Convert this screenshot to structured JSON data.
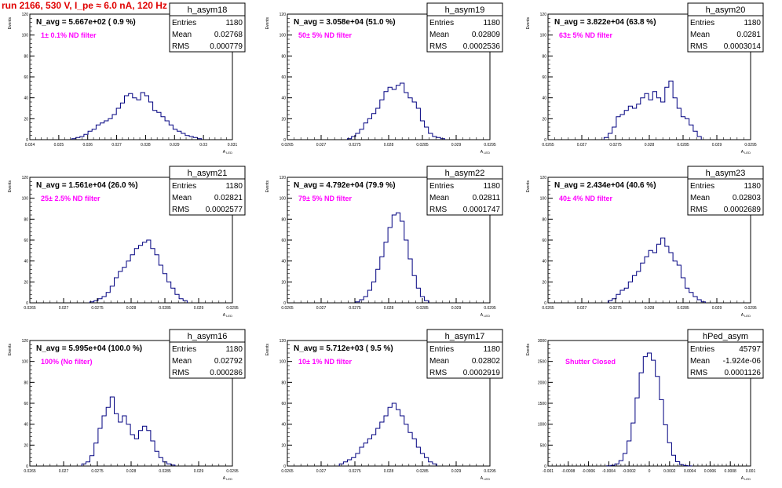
{
  "page_title": "run 2166,   530 V, I_pe ≈ 6.0 nA, 120 Hz",
  "colors": {
    "title": "#e00000",
    "filter_note": "#ff00ff",
    "histogram": "#000080",
    "frame": "#000000"
  },
  "common": {
    "ylabel": "Events",
    "xlabel": "A",
    "xlabel_sub": "LED",
    "stats_labels": {
      "entries": "Entries",
      "mean": "Mean",
      "rms": "RMS"
    }
  },
  "chart_data": [
    {
      "type": "bar",
      "name": "h_asym18",
      "navg": "N_avg = 5.667e+02 ( 0.9 %)",
      "note": "1± 0.1% ND filter",
      "stats": {
        "entries": "1180",
        "mean": "0.02768",
        "rms": "0.000779"
      },
      "xlim": [
        0.024,
        0.031
      ],
      "ylim": [
        0,
        120
      ],
      "xticks": [
        "0.024",
        "0.025",
        "0.026",
        "0.027",
        "0.028",
        "0.029",
        "0.03",
        "0.031"
      ],
      "yticks": [
        "0",
        "20",
        "40",
        "60",
        "80",
        "100",
        "120"
      ],
      "x": [
        0.02552,
        0.02566,
        0.0258,
        0.02594,
        0.02608,
        0.02622,
        0.02636,
        0.0265,
        0.02664,
        0.02678,
        0.02692,
        0.02706,
        0.0272,
        0.02734,
        0.02748,
        0.02762,
        0.02776,
        0.0279,
        0.02804,
        0.02818,
        0.02832,
        0.02846,
        0.0286,
        0.02874,
        0.02888,
        0.02902,
        0.02916,
        0.0293,
        0.02944,
        0.02958,
        0.02972,
        0.02986
      ],
      "values": [
        1,
        2,
        3,
        5,
        8,
        10,
        14,
        16,
        18,
        20,
        24,
        30,
        35,
        42,
        44,
        40,
        38,
        45,
        42,
        36,
        28,
        26,
        22,
        18,
        14,
        10,
        8,
        6,
        4,
        3,
        2,
        1
      ]
    },
    {
      "type": "bar",
      "name": "h_asym19",
      "navg": "N_avg = 3.058e+04 (51.0 %)",
      "note": "50± 5% ND filter",
      "stats": {
        "entries": "1180",
        "mean": "0.02809",
        "rms": "0.0002536"
      },
      "xlim": [
        0.0265,
        0.0295
      ],
      "ylim": [
        0,
        120
      ],
      "xticks": [
        "0.0265",
        "0.027",
        "0.0275",
        "0.028",
        "0.0285",
        "0.029",
        "0.0295"
      ],
      "yticks": [
        "0",
        "20",
        "40",
        "60",
        "80",
        "100",
        "120"
      ],
      "x": [
        0.02742,
        0.02748,
        0.02754,
        0.0276,
        0.02766,
        0.02772,
        0.02778,
        0.02784,
        0.0279,
        0.02796,
        0.02802,
        0.02808,
        0.02814,
        0.0282,
        0.02826,
        0.02832,
        0.02838,
        0.02844,
        0.0285,
        0.02856,
        0.02862,
        0.02868,
        0.02874,
        0.0288
      ],
      "values": [
        1,
        3,
        6,
        10,
        16,
        20,
        25,
        30,
        38,
        46,
        50,
        48,
        52,
        54,
        45,
        40,
        36,
        30,
        18,
        12,
        6,
        3,
        2,
        1
      ]
    },
    {
      "type": "bar",
      "name": "h_asym20",
      "navg": "N_avg = 3.822e+04 (63.8 %)",
      "note": "63± 5% ND filter",
      "stats": {
        "entries": "1180",
        "mean": "0.0281",
        "rms": "0.0003014"
      },
      "xlim": [
        0.0265,
        0.0295
      ],
      "ylim": [
        0,
        120
      ],
      "xticks": [
        "0.0265",
        "0.027",
        "0.0275",
        "0.028",
        "0.0285",
        "0.029",
        "0.0295"
      ],
      "yticks": [
        "0",
        "20",
        "40",
        "60",
        "80",
        "100",
        "120"
      ],
      "x": [
        0.02736,
        0.02742,
        0.02748,
        0.02754,
        0.0276,
        0.02766,
        0.02772,
        0.02778,
        0.02784,
        0.0279,
        0.02796,
        0.02802,
        0.02808,
        0.02814,
        0.0282,
        0.02826,
        0.02832,
        0.02838,
        0.02844,
        0.0285,
        0.02856,
        0.02862,
        0.02868,
        0.02874
      ],
      "values": [
        2,
        6,
        12,
        22,
        24,
        28,
        32,
        30,
        34,
        40,
        44,
        38,
        46,
        40,
        36,
        50,
        56,
        40,
        30,
        22,
        20,
        14,
        8,
        3
      ]
    },
    {
      "type": "bar",
      "name": "h_asym21",
      "navg": "N_avg = 1.561e+04 (26.0 %)",
      "note": "25± 2.5% ND filter",
      "stats": {
        "entries": "1180",
        "mean": "0.02821",
        "rms": "0.0002577"
      },
      "xlim": [
        0.0265,
        0.0295
      ],
      "ylim": [
        0,
        120
      ],
      "xticks": [
        "0.0265",
        "0.027",
        "0.0275",
        "0.028",
        "0.0285",
        "0.029",
        "0.0295"
      ],
      "yticks": [
        "0",
        "20",
        "40",
        "60",
        "80",
        "100",
        "120"
      ],
      "x": [
        0.02742,
        0.02748,
        0.02754,
        0.0276,
        0.02766,
        0.02772,
        0.02778,
        0.02784,
        0.0279,
        0.02796,
        0.02802,
        0.02808,
        0.02814,
        0.0282,
        0.02826,
        0.02832,
        0.02838,
        0.02844,
        0.0285,
        0.02856,
        0.02862,
        0.02868,
        0.02874,
        0.0288
      ],
      "values": [
        1,
        2,
        4,
        6,
        10,
        16,
        24,
        30,
        34,
        40,
        46,
        52,
        55,
        58,
        60,
        52,
        46,
        36,
        28,
        20,
        14,
        8,
        4,
        2
      ]
    },
    {
      "type": "bar",
      "name": "h_asym22",
      "navg": "N_avg = 4.792e+04 (79.9 %)",
      "note": "79± 5% ND filter",
      "stats": {
        "entries": "1180",
        "mean": "0.02811",
        "rms": "0.0001747"
      },
      "xlim": [
        0.0265,
        0.0295
      ],
      "ylim": [
        0,
        120
      ],
      "xticks": [
        "0.0265",
        "0.027",
        "0.0275",
        "0.028",
        "0.0285",
        "0.029",
        "0.0295"
      ],
      "yticks": [
        "0",
        "20",
        "40",
        "60",
        "80",
        "100",
        "120"
      ],
      "x": [
        0.02754,
        0.0276,
        0.02766,
        0.02772,
        0.02778,
        0.02784,
        0.0279,
        0.02796,
        0.02802,
        0.02808,
        0.02814,
        0.0282,
        0.02826,
        0.02832,
        0.02838,
        0.02844,
        0.0285,
        0.02856
      ],
      "values": [
        1,
        3,
        6,
        12,
        20,
        32,
        44,
        58,
        72,
        84,
        86,
        78,
        60,
        42,
        26,
        14,
        6,
        2
      ]
    },
    {
      "type": "bar",
      "name": "h_asym23",
      "navg": "N_avg = 2.434e+04 (40.6 %)",
      "note": "40± 4% ND filter",
      "stats": {
        "entries": "1180",
        "mean": "0.02803",
        "rms": "0.0002689"
      },
      "xlim": [
        0.0265,
        0.0295
      ],
      "ylim": [
        0,
        120
      ],
      "xticks": [
        "0.0265",
        "0.027",
        "0.0275",
        "0.028",
        "0.0285",
        "0.029",
        "0.0295"
      ],
      "yticks": [
        "0",
        "20",
        "40",
        "60",
        "80",
        "100",
        "120"
      ],
      "x": [
        0.02742,
        0.02748,
        0.02754,
        0.0276,
        0.02766,
        0.02772,
        0.02778,
        0.02784,
        0.0279,
        0.02796,
        0.02802,
        0.02808,
        0.02814,
        0.0282,
        0.02826,
        0.02832,
        0.02838,
        0.02844,
        0.0285,
        0.02856,
        0.02862,
        0.02868,
        0.02874,
        0.0288
      ],
      "values": [
        2,
        4,
        8,
        12,
        14,
        20,
        26,
        30,
        38,
        44,
        50,
        48,
        56,
        62,
        54,
        48,
        40,
        36,
        24,
        14,
        10,
        6,
        3,
        1
      ]
    },
    {
      "type": "bar",
      "name": "h_asym16",
      "navg": "N_avg = 5.995e+04 (100.0 %)",
      "note": "100% (No filter)",
      "stats": {
        "entries": "1180",
        "mean": "0.02792",
        "rms": "0.000286"
      },
      "xlim": [
        0.0265,
        0.0295
      ],
      "ylim": [
        0,
        120
      ],
      "xticks": [
        "0.0265",
        "0.027",
        "0.0275",
        "0.028",
        "0.0285",
        "0.029",
        "0.0295"
      ],
      "yticks": [
        "0",
        "20",
        "40",
        "60",
        "80",
        "100",
        "120"
      ],
      "x": [
        0.0273,
        0.02736,
        0.02742,
        0.02748,
        0.02754,
        0.0276,
        0.02766,
        0.02772,
        0.02778,
        0.02784,
        0.0279,
        0.02796,
        0.02802,
        0.02808,
        0.02814,
        0.0282,
        0.02826,
        0.02832,
        0.02838,
        0.02844,
        0.0285,
        0.02856,
        0.02862
      ],
      "values": [
        2,
        4,
        10,
        22,
        36,
        48,
        56,
        66,
        50,
        42,
        48,
        40,
        30,
        26,
        34,
        38,
        34,
        24,
        14,
        8,
        4,
        2,
        1
      ]
    },
    {
      "type": "bar",
      "name": "h_asym17",
      "navg": "N_avg = 5.712e+03 ( 9.5 %)",
      "note": "10± 1% ND filter",
      "stats": {
        "entries": "1180",
        "mean": "0.02802",
        "rms": "0.0002919"
      },
      "xlim": [
        0.0265,
        0.0295
      ],
      "ylim": [
        0,
        120
      ],
      "xticks": [
        "0.0265",
        "0.027",
        "0.0275",
        "0.028",
        "0.0285",
        "0.029",
        "0.0295"
      ],
      "yticks": [
        "0",
        "20",
        "40",
        "60",
        "80",
        "100",
        "120"
      ],
      "x": [
        0.0273,
        0.02736,
        0.02742,
        0.02748,
        0.02754,
        0.0276,
        0.02766,
        0.02772,
        0.02778,
        0.02784,
        0.0279,
        0.02796,
        0.02802,
        0.02808,
        0.02814,
        0.0282,
        0.02826,
        0.02832,
        0.02838,
        0.02844,
        0.0285,
        0.02856,
        0.02862,
        0.02868
      ],
      "values": [
        2,
        4,
        6,
        8,
        12,
        18,
        22,
        26,
        30,
        36,
        42,
        48,
        56,
        60,
        54,
        48,
        40,
        32,
        26,
        18,
        12,
        8,
        4,
        2
      ]
    },
    {
      "type": "bar",
      "name": "hPed_asym",
      "navg": "",
      "note": "Shutter Closed",
      "stats": {
        "entries": "45797",
        "mean": "-1.924e-06",
        "rms": "0.0001126"
      },
      "xlim": [
        -0.001,
        0.001
      ],
      "ylim": [
        0,
        3500
      ],
      "xticks": [
        "-0.001",
        "-0.0008",
        "-0.0006",
        "-0.0004",
        "-0.0002",
        "0",
        "0.0002",
        "0.0004",
        "0.0006",
        "0.0008",
        "0.001"
      ],
      "yticks": [
        "0",
        "500",
        "1000",
        "1500",
        "2000",
        "2500",
        "3000"
      ],
      "x": [
        -0.0004,
        -0.00036,
        -0.00032,
        -0.00028,
        -0.00024,
        -0.0002,
        -0.00016,
        -0.00012,
        -8e-05,
        -4e-05,
        0.0,
        4e-05,
        8e-05,
        0.00012,
        0.00016,
        0.0002,
        0.00024,
        0.00028,
        0.00032,
        0.00036,
        0.0004
      ],
      "values": [
        5,
        20,
        60,
        150,
        350,
        700,
        1200,
        1900,
        2600,
        3050,
        3150,
        2950,
        2500,
        1850,
        1150,
        650,
        300,
        120,
        40,
        10,
        3
      ]
    }
  ]
}
